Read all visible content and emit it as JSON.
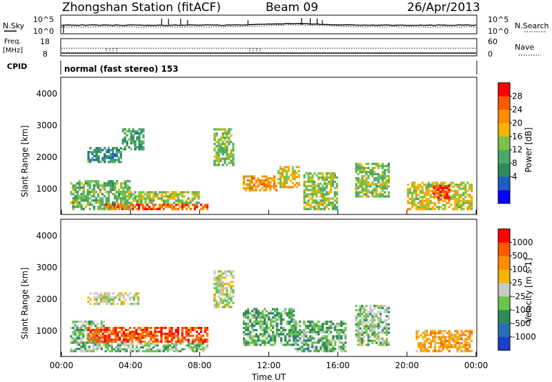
{
  "header": {
    "station": "Zhongshan Station (fitACF)",
    "beam": "Beam 09",
    "date": "26/Apr/2013"
  },
  "top_panel": {
    "left_label": "N.Sky",
    "right_label": "N.Search",
    "left_ticks": [
      "10^5",
      "10^0"
    ],
    "right_ticks": [
      "10^5",
      "10^0"
    ]
  },
  "freq_panel": {
    "left_label_1": "Freq.",
    "left_label_2": "[MHz]",
    "right_label": "Nave",
    "left_ticks": [
      "18",
      "8"
    ],
    "right_ticks": [
      "60",
      "0"
    ]
  },
  "cpid": {
    "label": "CPID",
    "value": "normal (fast stereo) 153"
  },
  "power_panel": {
    "ylabel": "Slant Range [km]",
    "yticks": [
      "4000",
      "3000",
      "2000",
      "1000"
    ],
    "cbar_label": "Power [dB]",
    "cbar_ticks": [
      "28",
      "24",
      "20",
      "16",
      "12",
      "8",
      "4"
    ],
    "cbar_colors": [
      "#0000ff",
      "#1e5ec8",
      "#2e8b57",
      "#4aa86a",
      "#7cc246",
      "#f5b400",
      "#ff8c00",
      "#ff5a00",
      "#ff0000"
    ]
  },
  "velocity_panel": {
    "ylabel": "Slant Range [km]",
    "yticks": [
      "4000",
      "3000",
      "2000",
      "1000"
    ],
    "cbar_label": "Velocity [m s-1]",
    "cbar_ticks": [
      "1000",
      "500",
      "100",
      "25",
      "-25",
      "-100",
      "-500",
      "-1000"
    ],
    "cbar_colors": [
      "#1a3fc8",
      "#2a6eb4",
      "#2e8b57",
      "#6cc24a",
      "#c8c8c8",
      "#f5b400",
      "#ff8c00",
      "#ff5a00",
      "#ff0000"
    ]
  },
  "xaxis": {
    "label": "Time UT",
    "ticks": [
      "00:00",
      "04:00",
      "08:00",
      "12:00",
      "16:00",
      "20:00",
      "00:00"
    ]
  },
  "chart_data": {
    "type": "heatmap",
    "title": "Zhongshan Station (fitACF)",
    "x": [
      "00:00",
      "04:00",
      "08:00",
      "12:00",
      "16:00",
      "20:00",
      "00:00"
    ],
    "xlabel": "Time UT",
    "ylabel": "Slant Range [km]",
    "ylim": [
      180,
      4500
    ],
    "series": [
      {
        "name": "Power [dB]",
        "zlim": [
          0,
          32
        ],
        "patches": [
          {
            "t0": 0.5,
            "t1": 4.0,
            "r0": 300,
            "r1": 1250,
            "v": 14
          },
          {
            "t0": 2.5,
            "t1": 8.5,
            "r0": 300,
            "r1": 500,
            "v": 26
          },
          {
            "t0": 3.5,
            "t1": 8.0,
            "r0": 500,
            "r1": 900,
            "v": 16
          },
          {
            "t0": 1.5,
            "t1": 3.5,
            "r0": 1800,
            "r1": 2300,
            "v": 10
          },
          {
            "t0": 3.5,
            "t1": 4.8,
            "r0": 2200,
            "r1": 2900,
            "v": 11
          },
          {
            "t0": 8.8,
            "t1": 10.0,
            "r0": 1700,
            "r1": 2900,
            "v": 15
          },
          {
            "t0": 10.5,
            "t1": 12.5,
            "r0": 900,
            "r1": 1400,
            "v": 22
          },
          {
            "t0": 12.5,
            "t1": 13.8,
            "r0": 1000,
            "r1": 1700,
            "v": 19
          },
          {
            "t0": 14.0,
            "t1": 16.0,
            "r0": 300,
            "r1": 1500,
            "v": 16
          },
          {
            "t0": 17.0,
            "t1": 19.0,
            "r0": 700,
            "r1": 1800,
            "v": 15
          },
          {
            "t0": 20.0,
            "t1": 23.8,
            "r0": 300,
            "r1": 1200,
            "v": 18
          },
          {
            "t0": 21.5,
            "t1": 22.5,
            "r0": 600,
            "r1": 1100,
            "v": 28
          }
        ]
      },
      {
        "name": "Velocity [m s-1]",
        "zlim": [
          -1000,
          1000
        ],
        "patches": [
          {
            "t0": 0.5,
            "t1": 2.5,
            "r0": 300,
            "r1": 1300,
            "v": -200
          },
          {
            "t0": 1.5,
            "t1": 8.5,
            "r0": 600,
            "r1": 1100,
            "v": 700
          },
          {
            "t0": 2.5,
            "t1": 8.5,
            "r0": 300,
            "r1": 600,
            "v": -200
          },
          {
            "t0": 1.5,
            "t1": 4.5,
            "r0": 1800,
            "r1": 2200,
            "v": 0
          },
          {
            "t0": 8.8,
            "t1": 10.0,
            "r0": 1700,
            "r1": 2900,
            "v": -50
          },
          {
            "t0": 10.5,
            "t1": 13.5,
            "r0": 500,
            "r1": 1700,
            "v": -300
          },
          {
            "t0": 13.5,
            "t1": 16.5,
            "r0": 300,
            "r1": 1300,
            "v": -300
          },
          {
            "t0": 17.0,
            "t1": 19.0,
            "r0": 500,
            "r1": 1800,
            "v": -150
          },
          {
            "t0": 20.5,
            "t1": 23.8,
            "r0": 300,
            "r1": 1000,
            "v": 300
          }
        ]
      }
    ]
  }
}
